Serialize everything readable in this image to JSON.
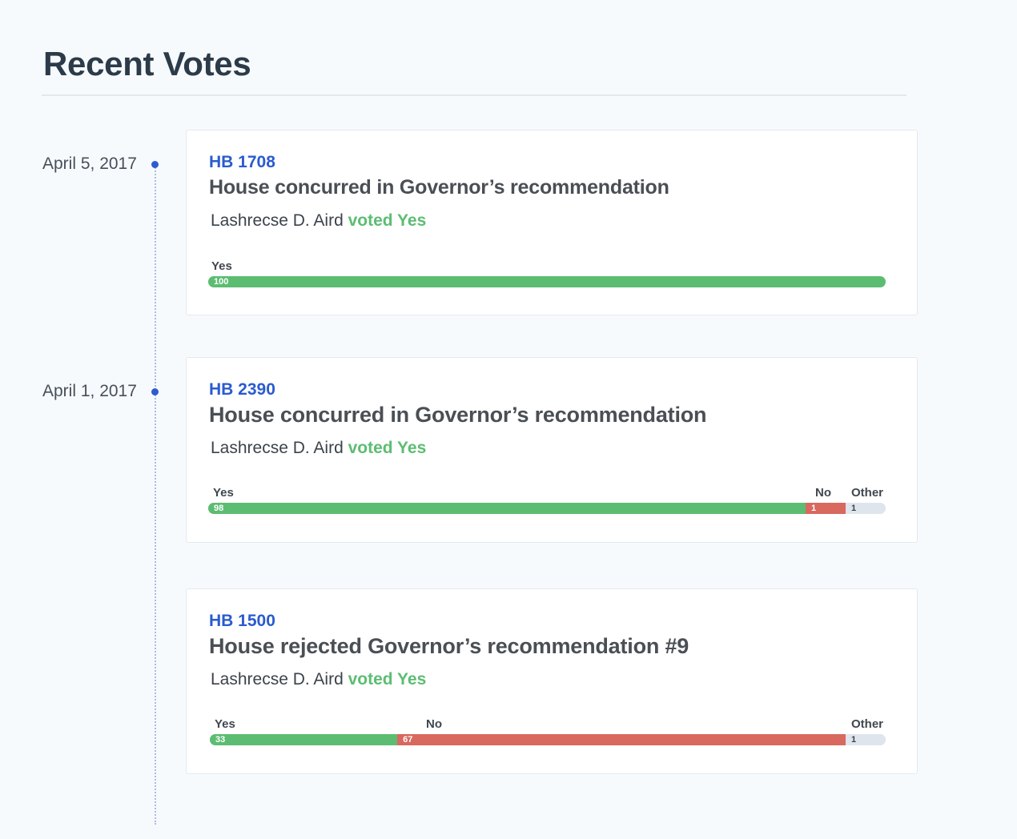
{
  "section": {
    "title": "Recent Votes"
  },
  "colors": {
    "yes": "#5cbd72",
    "no": "#d9685f",
    "other": "#dfe5ec",
    "link": "#2a5bd0",
    "timeline_dot": "#2d5bd1"
  },
  "votes": [
    {
      "date": "April 5, 2017",
      "bill": "HB 1708",
      "title": "House concurred in Governor’s recommendation",
      "legislator": "Lashrecse D. Aird",
      "voted_text": "voted Yes",
      "labels": {
        "yes": "Yes",
        "no": "",
        "other": ""
      },
      "counts": {
        "yes": "100",
        "no": "",
        "other": ""
      },
      "tally": {
        "yes": 100,
        "no": 0,
        "other": 0
      }
    },
    {
      "date": "April 1, 2017",
      "bill": "HB 2390",
      "title": "House concurred in Governor’s recommendation",
      "legislator": "Lashrecse D. Aird",
      "voted_text": "voted Yes",
      "labels": {
        "yes": "Yes",
        "no": "No",
        "other": "Other"
      },
      "counts": {
        "yes": "98",
        "no": "1",
        "other": "1"
      },
      "tally": {
        "yes": 98,
        "no": 1,
        "other": 1
      }
    },
    {
      "date": "",
      "bill": "HB 1500",
      "title": "House rejected Governor’s recommendation #9",
      "legislator": "Lashrecse D. Aird",
      "voted_text": "voted Yes",
      "labels": {
        "yes": "Yes",
        "no": "No",
        "other": "Other"
      },
      "counts": {
        "yes": "33",
        "no": "67",
        "other": "1"
      },
      "tally": {
        "yes": 33,
        "no": 67,
        "other": 1
      }
    }
  ]
}
